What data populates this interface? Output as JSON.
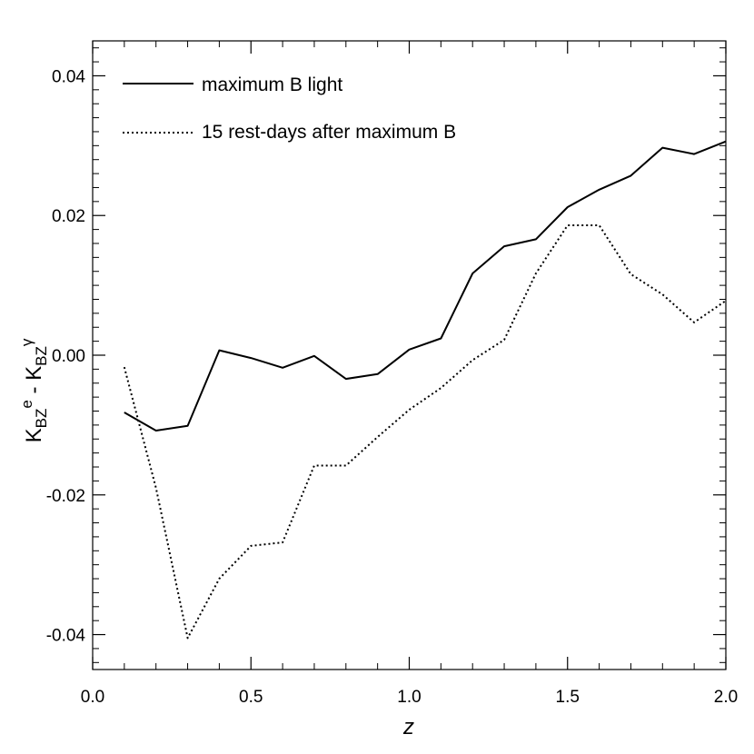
{
  "chart_data": {
    "type": "line",
    "title": "",
    "xlabel": "z",
    "ylabel": {
      "base1": "K",
      "sub1": "BZ",
      "sup1": "e",
      "sep": " - ",
      "base2": "K",
      "sub2": "BZ",
      "sup2": "γ"
    },
    "xlim": [
      0.0,
      2.0
    ],
    "ylim": [
      -0.045,
      0.045
    ],
    "xticks": [
      0.0,
      0.5,
      1.0,
      1.5,
      2.0
    ],
    "xtick_labels": [
      "0.0",
      "0.5",
      "1.0",
      "1.5",
      "2.0"
    ],
    "yticks": [
      -0.04,
      -0.02,
      0.0,
      0.02,
      0.04
    ],
    "ytick_labels": [
      "-0.04",
      "-0.02",
      "0.00",
      "0.02",
      "0.04"
    ],
    "legend_position": "top-left",
    "grid": false,
    "series": [
      {
        "name": "maximum B light",
        "style": "solid",
        "color": "#000000",
        "x": [
          0.1,
          0.2,
          0.3,
          0.4,
          0.5,
          0.6,
          0.7,
          0.8,
          0.9,
          1.0,
          1.1,
          1.2,
          1.3,
          1.4,
          1.5,
          1.6,
          1.7,
          1.8,
          1.9,
          2.0
        ],
        "y": [
          -0.0082,
          -0.0108,
          -0.0101,
          0.0007,
          -0.0004,
          -0.0018,
          -0.0001,
          -0.0034,
          -0.0027,
          0.0008,
          0.0024,
          0.0117,
          0.0156,
          0.0166,
          0.0212,
          0.0237,
          0.0257,
          0.0297,
          0.0288,
          0.0306
        ]
      },
      {
        "name": "15 rest-days after maximum B",
        "style": "dotted",
        "color": "#000000",
        "x": [
          0.1,
          0.2,
          0.3,
          0.4,
          0.5,
          0.6,
          0.7,
          0.8,
          0.9,
          1.0,
          1.1,
          1.2,
          1.3,
          1.4,
          1.5,
          1.6,
          1.7,
          1.8,
          1.9,
          2.0
        ],
        "y": [
          -0.0017,
          -0.019,
          -0.0405,
          -0.032,
          -0.0273,
          -0.0268,
          -0.0158,
          -0.0158,
          -0.0117,
          -0.0078,
          -0.0047,
          -0.0007,
          0.0022,
          0.0117,
          0.0186,
          0.0186,
          0.0116,
          0.0087,
          0.0047,
          0.0078
        ]
      }
    ]
  }
}
